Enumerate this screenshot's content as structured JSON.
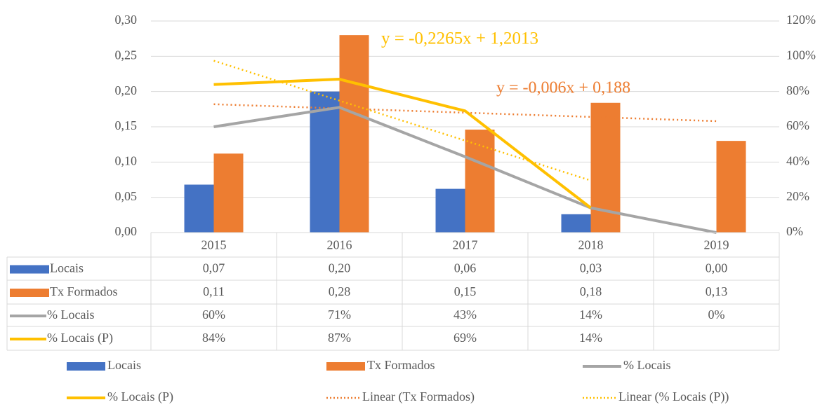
{
  "chart_data": {
    "type": "bar",
    "categories": [
      "2015",
      "2016",
      "2017",
      "2018",
      "2019"
    ],
    "ylim": [
      0,
      0.3
    ],
    "yticks": [
      {
        "value": 0,
        "label": "0,00"
      },
      {
        "value": 0.05,
        "label": "0,05"
      },
      {
        "value": 0.1,
        "label": "0,10"
      },
      {
        "value": 0.15,
        "label": "0,15"
      },
      {
        "value": 0.2,
        "label": "0,20"
      },
      {
        "value": 0.25,
        "label": "0,25"
      },
      {
        "value": 0.3,
        "label": "0,30"
      }
    ],
    "y2lim": [
      0,
      1.2
    ],
    "y2ticks": [
      {
        "value": 0,
        "label": "0%"
      },
      {
        "value": 0.2,
        "label": "20%"
      },
      {
        "value": 0.4,
        "label": "40%"
      },
      {
        "value": 0.6,
        "label": "60%"
      },
      {
        "value": 0.8,
        "label": "80%"
      },
      {
        "value": 1.0,
        "label": "100%"
      },
      {
        "value": 1.2,
        "label": "120%"
      }
    ],
    "grid": true,
    "series": [
      {
        "name": "Locais",
        "type": "bar",
        "color": "#4472c4",
        "values": [
          0.068,
          0.2,
          0.062,
          0.026,
          0
        ],
        "value_labels": [
          "0,07",
          "0,20",
          "0,06",
          "0,03",
          "0,00"
        ]
      },
      {
        "name": "Tx Formados",
        "type": "bar",
        "color": "#ed7d31",
        "values": [
          0.112,
          0.28,
          0.146,
          0.184,
          0.13
        ],
        "value_labels": [
          "0,11",
          "0,28",
          "0,15",
          "0,18",
          "0,13"
        ],
        "trendline": {
          "name": "Linear (Tx Formados)",
          "equation": "y = -0,006x + 0,188",
          "slope": -0.006,
          "intercept": 0.188,
          "color": "#ed7d31"
        }
      },
      {
        "name": "% Locais",
        "type": "line",
        "axis": "y2",
        "color": "#a5a5a5",
        "values": [
          0.6,
          0.71,
          0.43,
          0.14,
          0
        ],
        "value_labels": [
          "60%",
          "71%",
          "43%",
          "14%",
          "0%"
        ]
      },
      {
        "name": "% Locais (P)",
        "type": "line",
        "axis": "y2",
        "color": "#ffc000",
        "values": [
          0.84,
          0.87,
          0.69,
          0.14,
          null
        ],
        "value_labels": [
          "84%",
          "87%",
          "69%",
          "14%",
          null
        ],
        "trendline": {
          "name": "Linear (% Locais (P))",
          "equation": "y = -0,2265x + 1,2013",
          "slope": -0.2265,
          "intercept": 1.2013,
          "color": "#ffc000"
        }
      }
    ]
  }
}
